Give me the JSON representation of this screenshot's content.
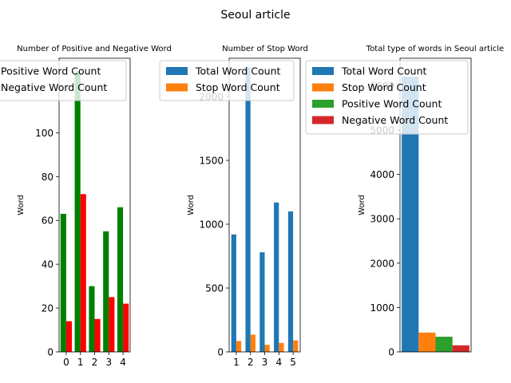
{
  "figure_title": "Seoul article",
  "colors": {
    "green": "#008000",
    "red": "#ff0000",
    "blue": "#1f77b4",
    "orange": "#ff7f0e",
    "mpl_green": "#2ca02c",
    "mpl_red": "#d62728"
  },
  "chart_data": [
    {
      "type": "bar",
      "title": "Number of Positive and Negative Word",
      "xlabel": "",
      "ylabel": "Word",
      "categories": [
        "0",
        "1",
        "2",
        "3",
        "4"
      ],
      "ylim": [
        0,
        134
      ],
      "yticks": [
        0,
        20,
        40,
        60,
        80,
        100
      ],
      "legend": "upper-left",
      "series": [
        {
          "name": "Positive Word Count",
          "color": "green",
          "values": [
            63,
            128,
            30,
            55,
            66
          ]
        },
        {
          "name": "Negative Word Count",
          "color": "red",
          "values": [
            14,
            72,
            15,
            25,
            22
          ]
        }
      ]
    },
    {
      "type": "bar",
      "title": "Number of Stop Word",
      "xlabel": "",
      "ylabel": "Word",
      "categories": [
        "1",
        "2",
        "3",
        "4",
        "5"
      ],
      "ylim": [
        0,
        2300
      ],
      "yticks": [
        0,
        500,
        1000,
        1500,
        2000
      ],
      "legend": "upper-left",
      "series": [
        {
          "name": "Total Word Count",
          "color": "blue",
          "values": [
            920,
            2230,
            780,
            1170,
            1100
          ]
        },
        {
          "name": "Stop Word Count",
          "color": "orange",
          "values": [
            85,
            135,
            55,
            70,
            90
          ]
        }
      ]
    },
    {
      "type": "bar",
      "title": "Total type of words in Seoul article",
      "xlabel": "",
      "ylabel": "Word",
      "categories": [
        ""
      ],
      "ylim": [
        0,
        6620
      ],
      "yticks": [
        0,
        1000,
        2000,
        3000,
        4000,
        5000,
        6000
      ],
      "legend": "upper-left",
      "series": [
        {
          "name": "Total Word Count",
          "color": "blue",
          "values": [
            6200
          ]
        },
        {
          "name": "Stop Word Count",
          "color": "orange",
          "values": [
            435
          ]
        },
        {
          "name": "Positive Word Count",
          "color": "mpl_green",
          "values": [
            342
          ]
        },
        {
          "name": "Negative Word Count",
          "color": "mpl_red",
          "values": [
            148
          ]
        }
      ]
    }
  ]
}
